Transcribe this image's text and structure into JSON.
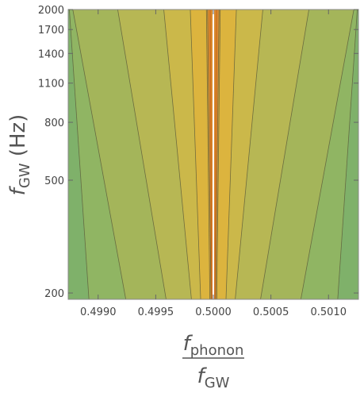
{
  "chart_data": {
    "type": "contour",
    "title": "",
    "x_axis": {
      "label_main": "f",
      "label_sub": "phonon",
      "label_denominator_main": "f",
      "label_denominator_sub": "GW",
      "range": [
        0.49874,
        0.50126
      ],
      "ticks": [
        0.499,
        0.4995,
        0.5,
        0.5005,
        0.501
      ],
      "tick_labels": [
        "0.4990",
        "0.4995",
        "0.5000",
        "0.5005",
        "0.5010"
      ]
    },
    "y_axis": {
      "label_main": "f",
      "label_sub": "GW",
      "label_suffix": " (Hz)",
      "scale": "log",
      "range": [
        190,
        2000
      ],
      "ticks": [
        200,
        500,
        800,
        1100,
        1400,
        1700,
        2000
      ],
      "tick_labels": [
        "200",
        "500",
        "800",
        "1100",
        "1400",
        "1700",
        "2000"
      ]
    },
    "contour_levels": [
      {
        "half_width_at_2000": 5e-05,
        "half_width_at_190": 2e-05
      },
      {
        "half_width_at_2000": 6e-05,
        "half_width_at_190": 3e-05
      },
      {
        "half_width_at_2000": 0.0002,
        "half_width_at_190": 0.00011
      },
      {
        "half_width_at_2000": 0.00043,
        "half_width_at_190": 0.00019
      },
      {
        "half_width_at_2000": 0.00083,
        "half_width_at_190": 0.00041
      },
      {
        "half_width_at_2000": 0.00122,
        "half_width_at_190": 0.00076
      },
      {
        "half_width_at_2000": 0.00125,
        "half_width_at_190": 0.00108
      }
    ],
    "band_colors": [
      "#d98a2e",
      "#dea53a",
      "#dcb43e",
      "#cbb84a",
      "#b7b754",
      "#a4b55a",
      "#90b563",
      "#7fb16a"
    ],
    "center_line_color": "#ffffff",
    "grid": false,
    "legend": "none"
  }
}
